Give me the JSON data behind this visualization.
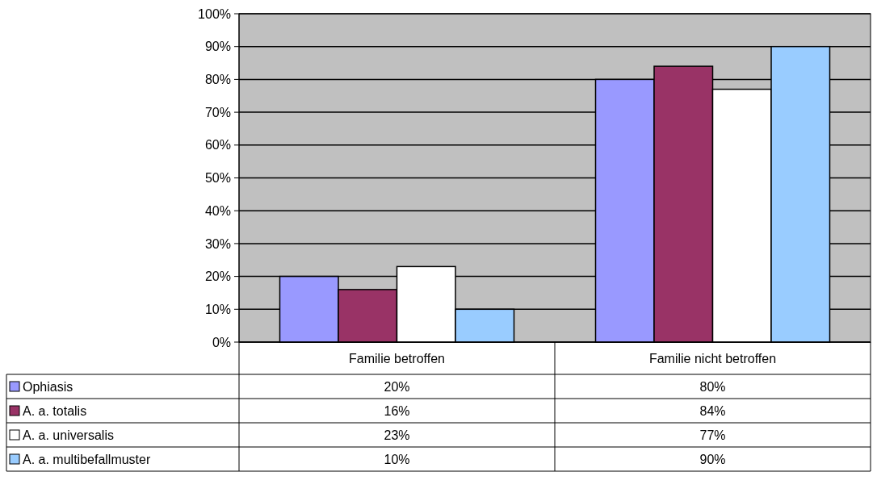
{
  "chart_data": {
    "type": "bar",
    "categories": [
      "Familie betroffen",
      "Familie nicht betroffen"
    ],
    "series": [
      {
        "name": "Ophiasis",
        "color": "#9999ff",
        "values": [
          20,
          80
        ],
        "value_labels": [
          "20%",
          "80%"
        ]
      },
      {
        "name": "A. a. totalis",
        "color": "#993366",
        "values": [
          16,
          84
        ],
        "value_labels": [
          "16%",
          "84%"
        ]
      },
      {
        "name": "A. a. universalis",
        "color": "#ffffff",
        "values": [
          23,
          77
        ],
        "value_labels": [
          "23%",
          "77%"
        ]
      },
      {
        "name": "A. a. multibefallmuster",
        "color": "#99ccff",
        "values": [
          10,
          90
        ],
        "value_labels": [
          "10%",
          "90%"
        ]
      }
    ],
    "ylim": [
      0,
      100
    ],
    "yticks": [
      {
        "value": 0,
        "label": "0%"
      },
      {
        "value": 10,
        "label": "10%"
      },
      {
        "value": 20,
        "label": "20%"
      },
      {
        "value": 30,
        "label": "30%"
      },
      {
        "value": 40,
        "label": "40%"
      },
      {
        "value": 50,
        "label": "50%"
      },
      {
        "value": 60,
        "label": "60%"
      },
      {
        "value": 70,
        "label": "70%"
      },
      {
        "value": 80,
        "label": "80%"
      },
      {
        "value": 90,
        "label": "90%"
      },
      {
        "value": 100,
        "label": "100%"
      }
    ],
    "grid": "y",
    "legend": "bottom left"
  }
}
